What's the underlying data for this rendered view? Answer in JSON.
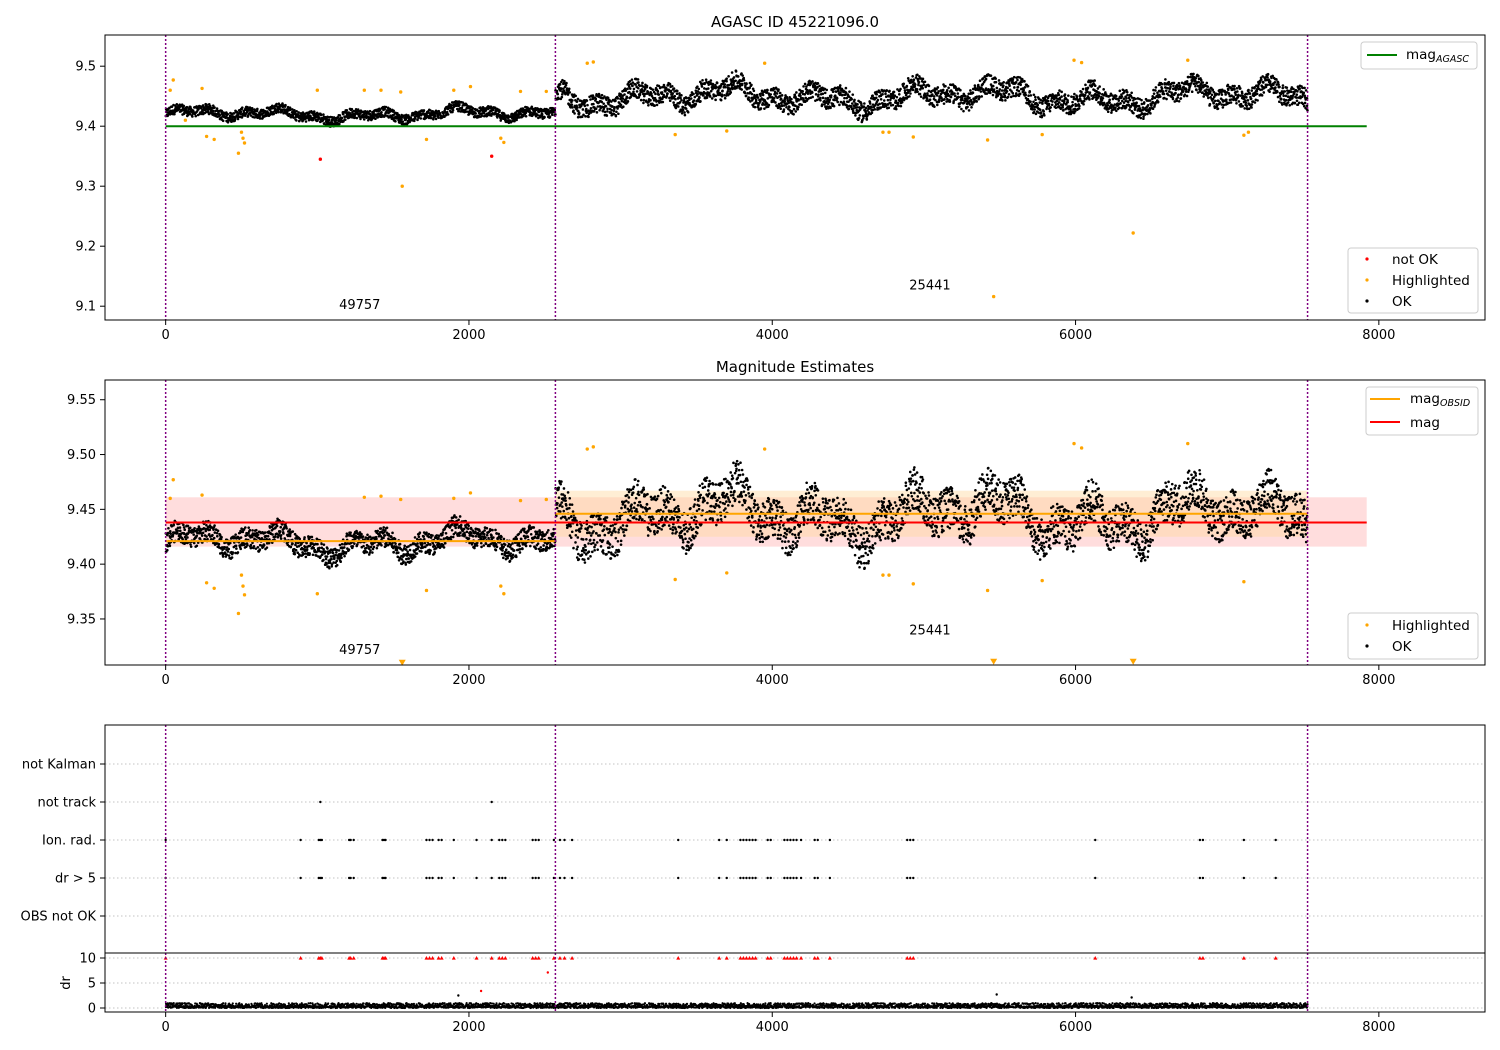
{
  "colors": {
    "ok": "#000000",
    "highlighted": "#ffa500",
    "not_ok": "#ff0000",
    "agasc_line": "#008000",
    "obsid_line": "#ffa500",
    "mag_line": "#ff0000",
    "band_mag": "#ffb3b3",
    "band_obsid": "#ffd9a0",
    "vline": "#800080",
    "grid": "#b0b0b0"
  },
  "chart_data": [
    {
      "type": "scatter",
      "title": "AGASC ID 45221096.0",
      "xlim": [
        -400,
        8700
      ],
      "ylim": [
        9.077,
        9.552
      ],
      "xticks": [
        0,
        2000,
        4000,
        6000,
        8000
      ],
      "xtick_labels": [
        "0",
        "2000",
        "4000",
        "6000",
        "8000"
      ],
      "yticks": [
        9.1,
        9.2,
        9.3,
        9.4,
        9.5
      ],
      "ytick_labels": [
        "9.1",
        "9.2",
        "9.3",
        "9.4",
        "9.5"
      ],
      "grid": false,
      "obsid_boundaries": [
        0,
        2570,
        7530
      ],
      "annotations": [
        {
          "text": "49757",
          "x": 1280,
          "y": 9.095
        },
        {
          "text": "25441",
          "x": 5040,
          "y": 9.128
        }
      ],
      "reference_lines": [
        {
          "name": "mag",
          "subscript": "AGASC",
          "y": 9.4,
          "x": [
            0,
            7920
          ],
          "color": "#008000"
        }
      ],
      "segments": [
        {
          "x": [
            0,
            2570
          ],
          "base": 9.42,
          "amp": 0.03
        },
        {
          "x": [
            2570,
            7530
          ],
          "base": 9.45,
          "amp": 0.06
        }
      ],
      "series": [
        {
          "name": "not OK",
          "color": "#ff0000",
          "points": [
            [
              1020,
              9.345
            ],
            [
              2150,
              9.35
            ]
          ]
        },
        {
          "name": "Highlighted",
          "color": "#ffa500",
          "points": [
            [
              30,
              9.46
            ],
            [
              50,
              9.477
            ],
            [
              130,
              9.41
            ],
            [
              240,
              9.463
            ],
            [
              270,
              9.383
            ],
            [
              320,
              9.378
            ],
            [
              480,
              9.355
            ],
            [
              500,
              9.39
            ],
            [
              510,
              9.38
            ],
            [
              520,
              9.372
            ],
            [
              1000,
              9.46
            ],
            [
              1310,
              9.46
            ],
            [
              1420,
              9.46
            ],
            [
              1550,
              9.457
            ],
            [
              1560,
              9.3
            ],
            [
              1720,
              9.378
            ],
            [
              1900,
              9.46
            ],
            [
              2010,
              9.466
            ],
            [
              2210,
              9.38
            ],
            [
              2230,
              9.373
            ],
            [
              2340,
              9.458
            ],
            [
              2510,
              9.458
            ],
            [
              2780,
              9.505
            ],
            [
              2820,
              9.507
            ],
            [
              3360,
              9.386
            ],
            [
              3700,
              9.392
            ],
            [
              3950,
              9.505
            ],
            [
              4730,
              9.39
            ],
            [
              4770,
              9.39
            ],
            [
              4930,
              9.382
            ],
            [
              5420,
              9.377
            ],
            [
              5460,
              9.116
            ],
            [
              5780,
              9.386
            ],
            [
              5990,
              9.51
            ],
            [
              6040,
              9.506
            ],
            [
              6380,
              9.222
            ],
            [
              6740,
              9.51
            ],
            [
              7110,
              9.385
            ],
            [
              7140,
              9.39
            ]
          ]
        },
        {
          "name": "OK",
          "color": "#000000",
          "points": []
        }
      ],
      "legends": [
        {
          "position": "upper right",
          "entries": [
            {
              "label": "mag",
              "subscript": "AGASC",
              "kind": "line",
              "color": "#008000"
            }
          ]
        },
        {
          "position": "lower right",
          "entries": [
            {
              "label": "not OK",
              "kind": "dot",
              "color": "#ff0000"
            },
            {
              "label": "Highlighted",
              "kind": "dot",
              "color": "#ffa500"
            },
            {
              "label": "OK",
              "kind": "dot",
              "color": "#000000"
            }
          ]
        }
      ]
    },
    {
      "type": "scatter",
      "title": "Magnitude Estimates",
      "xlim": [
        -400,
        8700
      ],
      "ylim": [
        9.308,
        9.568
      ],
      "xticks": [
        0,
        2000,
        4000,
        6000,
        8000
      ],
      "xtick_labels": [
        "0",
        "2000",
        "4000",
        "6000",
        "8000"
      ],
      "yticks": [
        9.35,
        9.4,
        9.45,
        9.5,
        9.55
      ],
      "ytick_labels": [
        "9.35",
        "9.40",
        "9.45",
        "9.50",
        "9.55"
      ],
      "grid": false,
      "obsid_boundaries": [
        0,
        2570,
        7530
      ],
      "annotations": [
        {
          "text": "49757",
          "x": 1280,
          "y": 9.318
        },
        {
          "text": "25441",
          "x": 5040,
          "y": 9.336
        }
      ],
      "bands": [
        {
          "x": [
            0,
            7920
          ],
          "y": [
            9.416,
            9.461
          ],
          "color": "#ffb3b3"
        },
        {
          "x": [
            2570,
            7530
          ],
          "y": [
            9.425,
            9.467
          ],
          "color": "#ffd9a0"
        }
      ],
      "reference_lines": [
        {
          "name": "mag",
          "subscript": "OBSID",
          "y": 9.421,
          "x": [
            0,
            2570
          ],
          "color": "#ffa500"
        },
        {
          "name": "mag",
          "subscript": "OBSID",
          "y": 9.446,
          "x": [
            2570,
            7530
          ],
          "color": "#ffa500"
        },
        {
          "name": "mag",
          "subscript": "",
          "y": 9.438,
          "x": [
            0,
            7920
          ],
          "color": "#ff0000"
        }
      ],
      "segments": [
        {
          "x": [
            0,
            2570
          ],
          "base": 9.42,
          "amp": 0.035
        },
        {
          "x": [
            2570,
            7530
          ],
          "base": 9.445,
          "amp": 0.07
        }
      ],
      "lower_limit_markers": [
        [
          1560,
          9.31
        ],
        [
          5460,
          9.311
        ],
        [
          6380,
          9.311
        ]
      ],
      "series": [
        {
          "name": "Highlighted",
          "color": "#ffa500",
          "points": [
            [
              30,
              9.46
            ],
            [
              50,
              9.477
            ],
            [
              240,
              9.463
            ],
            [
              270,
              9.383
            ],
            [
              320,
              9.378
            ],
            [
              480,
              9.355
            ],
            [
              500,
              9.39
            ],
            [
              510,
              9.38
            ],
            [
              520,
              9.372
            ],
            [
              1000,
              9.373
            ],
            [
              1310,
              9.461
            ],
            [
              1420,
              9.462
            ],
            [
              1550,
              9.459
            ],
            [
              1720,
              9.376
            ],
            [
              1900,
              9.46
            ],
            [
              2010,
              9.465
            ],
            [
              2210,
              9.38
            ],
            [
              2230,
              9.373
            ],
            [
              2340,
              9.458
            ],
            [
              2510,
              9.459
            ],
            [
              2780,
              9.505
            ],
            [
              2820,
              9.507
            ],
            [
              3360,
              9.386
            ],
            [
              3700,
              9.392
            ],
            [
              3950,
              9.505
            ],
            [
              4730,
              9.39
            ],
            [
              4770,
              9.39
            ],
            [
              4930,
              9.382
            ],
            [
              5420,
              9.376
            ],
            [
              5990,
              9.51
            ],
            [
              6040,
              9.506
            ],
            [
              5780,
              9.385
            ],
            [
              6740,
              9.51
            ],
            [
              7110,
              9.384
            ]
          ]
        },
        {
          "name": "OK",
          "color": "#000000",
          "points": []
        }
      ],
      "legends": [
        {
          "position": "upper right",
          "entries": [
            {
              "label": "mag",
              "subscript": "OBSID",
              "kind": "line",
              "color": "#ffa500"
            },
            {
              "label": "mag",
              "subscript": "",
              "kind": "line",
              "color": "#ff0000"
            }
          ]
        },
        {
          "position": "lower right",
          "entries": [
            {
              "label": "Highlighted",
              "kind": "dot",
              "color": "#ffa500"
            },
            {
              "label": "OK",
              "kind": "dot",
              "color": "#000000"
            }
          ]
        }
      ]
    },
    {
      "type": "scatter",
      "title": "",
      "xlim": [
        -400,
        8700
      ],
      "xticks": [
        0,
        2000,
        4000,
        6000,
        8000
      ],
      "xtick_labels": [
        "0",
        "2000",
        "4000",
        "6000",
        "8000"
      ],
      "grid": true,
      "obsid_boundaries": [
        0,
        2570,
        7530
      ],
      "flag_rows": [
        "not Kalman",
        "not track",
        "Ion. rad.",
        "dr > 5",
        "OBS not OK"
      ],
      "flag_points": {
        "not track": [
          1020,
          2150
        ],
        "Ion. rad.": [
          0,
          890,
          1010,
          1020,
          1030,
          1210,
          1220,
          1240,
          1430,
          1440,
          1450,
          1720,
          1740,
          1760,
          1800,
          1820,
          1900,
          2050,
          2150,
          2200,
          2220,
          2240,
          2420,
          2440,
          2460,
          2560,
          2600,
          2630,
          2680,
          3380,
          3650,
          3700,
          3790,
          3810,
          3830,
          3850,
          3870,
          3890,
          3970,
          3990,
          4080,
          4100,
          4120,
          4140,
          4160,
          4190,
          4280,
          4300,
          4380,
          4890,
          4910,
          4930,
          6130,
          6820,
          6840,
          7110,
          7320
        ],
        "dr > 5": [
          0,
          890,
          1010,
          1020,
          1030,
          1210,
          1220,
          1240,
          1430,
          1440,
          1450,
          1720,
          1740,
          1760,
          1800,
          1820,
          1900,
          2050,
          2150,
          2200,
          2220,
          2240,
          2420,
          2440,
          2460,
          2560,
          2600,
          2630,
          2680,
          3380,
          3650,
          3700,
          3790,
          3810,
          3830,
          3850,
          3870,
          3890,
          3970,
          3990,
          4080,
          4100,
          4120,
          4140,
          4160,
          4190,
          4280,
          4300,
          4380,
          4890,
          4910,
          4930,
          6130,
          6820,
          6840,
          7110,
          7320
        ]
      },
      "dr_subplot": {
        "ylabel": "dr",
        "ylim": [
          -0.8,
          11
        ],
        "yticks": [
          0,
          5,
          10
        ],
        "ytick_labels": [
          "0",
          "5",
          "10"
        ],
        "clip_value": 10,
        "clipped_x": [
          0,
          890,
          1010,
          1020,
          1030,
          1210,
          1220,
          1240,
          1430,
          1440,
          1450,
          1720,
          1740,
          1760,
          1800,
          1820,
          1900,
          2050,
          2150,
          2200,
          2220,
          2240,
          2420,
          2440,
          2460,
          2560,
          2600,
          2630,
          2680,
          3380,
          3650,
          3700,
          3790,
          3810,
          3830,
          3850,
          3870,
          3890,
          3970,
          3990,
          4080,
          4100,
          4120,
          4140,
          4160,
          4190,
          4280,
          4300,
          4380,
          4890,
          4910,
          4930,
          6130,
          6820,
          6840,
          7110,
          7320
        ],
        "red_extra": [
          [
            2520,
            7.1
          ],
          [
            2080,
            3.4
          ]
        ],
        "black_extra": [
          [
            1930,
            2.5
          ],
          [
            5480,
            2.7
          ],
          [
            6370,
            2.1
          ]
        ]
      }
    }
  ]
}
